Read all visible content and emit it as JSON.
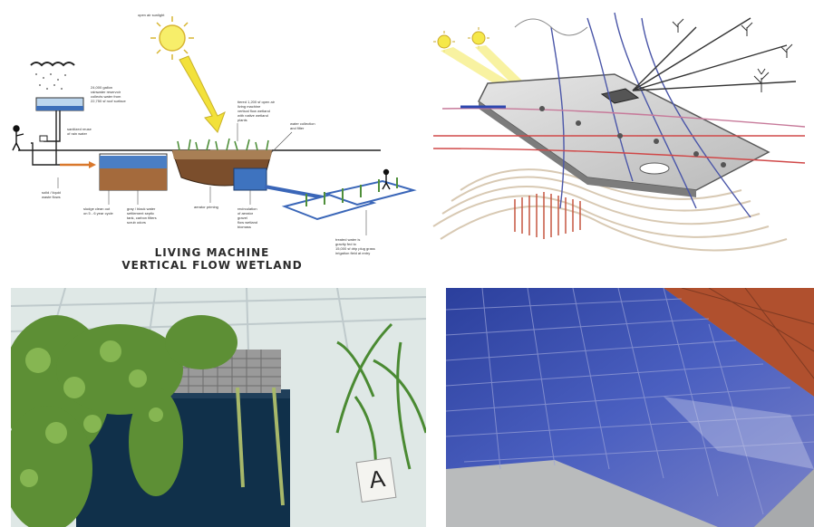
{
  "wetland_diagram": {
    "title_line1": "LIVING MACHINE",
    "title_line2": "VERTICAL FLOW WETLAND",
    "labels": {
      "sun": "open air sunlight",
      "rain": "24,000 gallon\nrainwater reservoir\ncollects water from\n22,750 sf roof surface",
      "reuse": "sanitized reuse\nof rain water",
      "solids": "solid / liquid\nwaste flows",
      "sludge": "sludge clean out\non 5 - 6 year cycle",
      "tank": "gray / black water\nsettlement septic\ntank, carbon filters\nscrub odors",
      "aerator": "aerator priming",
      "wetland": "tiered 1,200 sf open air\nliving machine\nvertical flow wetland\nwith native wetland\nplants",
      "collection": "water collection\nand filter",
      "recirc": "recirculation\nof aerator\ngravel\nflow wetland\nbiomass",
      "irrigation": "treated water is\ngravity fed to\n15,000 sf drip plug grass\nirrigation field at entry"
    }
  },
  "photos": {
    "greenhouse": {
      "sign_letter": "A"
    }
  },
  "colors": {
    "arrow_blue": "#3a66b8",
    "arrow_orange": "#d9782c",
    "sun_yellow": "#f3e34a",
    "soil_brown": "#8a5a34",
    "solar_blue": "#2d3f9a",
    "roof_tile": "#b0502e"
  }
}
